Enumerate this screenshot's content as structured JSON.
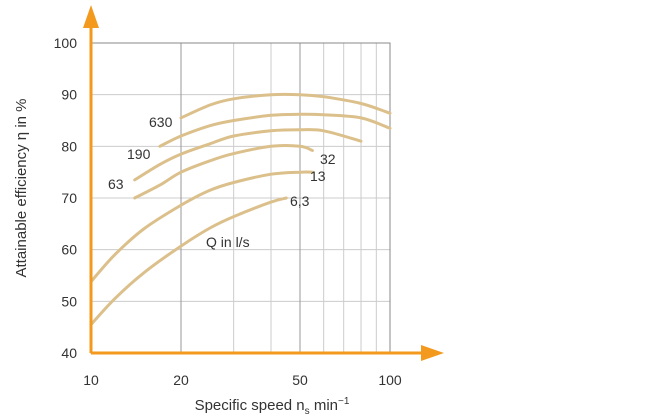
{
  "chart_data": {
    "type": "line",
    "title": "",
    "xlabel": "Specific speed n",
    "xlabel_sub": "s",
    "xlabel_unit": " min",
    "xlabel_sup": "−1",
    "ylabel": "Attainable efficiency η in %",
    "x_scale": "log",
    "xlim": [
      10,
      100
    ],
    "ylim": [
      40,
      100
    ],
    "x_ticks": [
      10,
      20,
      50,
      100
    ],
    "y_ticks": [
      40,
      50,
      60,
      70,
      80,
      90,
      100
    ],
    "grid": true,
    "annotation": "Q in l/s",
    "colors": {
      "curves": "#dcc08b",
      "axis": "#f39a1e",
      "grid": "#cccccc",
      "frame": "#888888"
    },
    "series": [
      {
        "name": "630",
        "x": [
          20,
          25,
          30,
          40,
          50,
          60,
          80,
          100
        ],
        "y": [
          85.5,
          88.0,
          89.2,
          90.0,
          90.0,
          89.6,
          88.3,
          86.4
        ]
      },
      {
        "name": "190",
        "x": [
          17,
          20,
          25,
          30,
          40,
          50,
          60,
          80,
          100
        ],
        "y": [
          80.0,
          82.0,
          84.0,
          85.0,
          86.0,
          86.2,
          86.1,
          85.5,
          83.5
        ]
      },
      {
        "name": "63",
        "x": [
          14,
          17,
          20,
          25,
          30,
          40,
          50,
          60,
          80
        ],
        "y": [
          73.5,
          76.5,
          78.5,
          80.5,
          82.0,
          83.0,
          83.2,
          83.0,
          81.0
        ]
      },
      {
        "name": "32",
        "x": [
          14,
          17,
          20,
          25,
          30,
          40,
          50,
          55
        ],
        "y": [
          70.0,
          72.5,
          75.0,
          77.2,
          78.6,
          80.0,
          80.0,
          79.2
        ]
      },
      {
        "name": "13",
        "x": [
          10,
          12,
          15,
          20,
          25,
          30,
          40,
          50,
          55
        ],
        "y": [
          53.8,
          59.0,
          64.0,
          68.6,
          71.5,
          73.0,
          74.6,
          75.0,
          75.0
        ]
      },
      {
        "name": "6,3",
        "x": [
          10,
          12,
          15,
          20,
          25,
          30,
          40,
          45
        ],
        "y": [
          45.5,
          50.5,
          55.5,
          60.7,
          64.2,
          66.4,
          69.2,
          70.0
        ]
      }
    ],
    "curve_labels": [
      "630",
      "190",
      "63",
      "32",
      "13",
      "6,3"
    ]
  }
}
